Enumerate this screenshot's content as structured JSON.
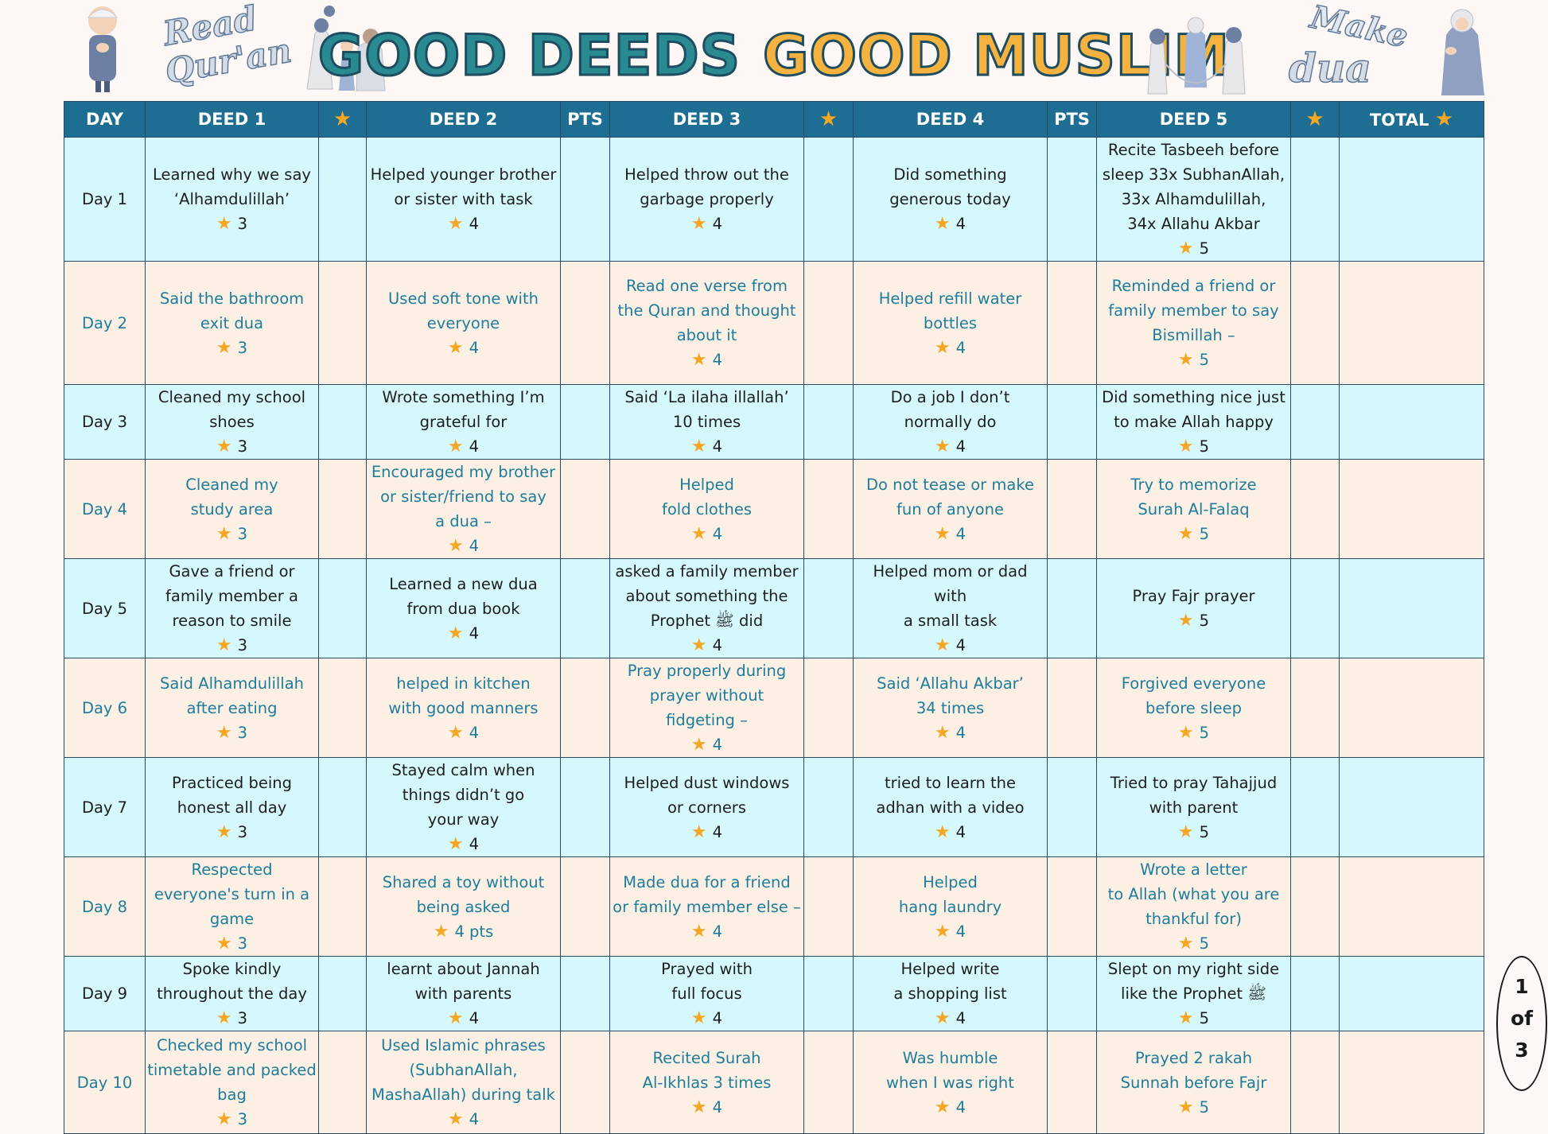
{
  "title": {
    "part1": "GOOD DEEDS",
    "part2": "GOOD MUSLIM"
  },
  "decor": {
    "read_quran": [
      "Read",
      "Qur'an"
    ],
    "make_dua": [
      "Make",
      "dua"
    ]
  },
  "columns": {
    "day": "DAY",
    "deed1": "DEED 1",
    "deed2": "DEED 2",
    "pts": "PTS",
    "deed3": "DEED 3",
    "deed4": "DEED 4",
    "deed5": "DEED 5",
    "total": "TOTAL",
    "star_icon": "★"
  },
  "rows": [
    {
      "day": "Day 1",
      "deeds": [
        {
          "text": "Learned why we say\n‘Alhamdulillah’",
          "pts": "3"
        },
        {
          "text": "Helped younger brother\nor sister with task",
          "pts": "4"
        },
        {
          "text": "Helped throw out the\ngarbage properly",
          "pts": "4"
        },
        {
          "text": "Did something\ngenerous today",
          "pts": "4"
        },
        {
          "text": "Recite Tasbeeh before\nsleep 33x SubhanAllah,\n33x Alhamdulillah,\n34x Allahu Akbar",
          "pts": "5"
        }
      ]
    },
    {
      "day": "Day 2",
      "deeds": [
        {
          "text": "Said the bathroom\nexit dua",
          "pts": "3"
        },
        {
          "text": "Used soft tone with\neveryone",
          "pts": "4"
        },
        {
          "text": "Read one verse from\nthe Quran and thought\nabout it",
          "pts": "4"
        },
        {
          "text": "Helped refill water\nbottles",
          "pts": "4"
        },
        {
          "text": "Reminded a friend or\nfamily member to say\nBismillah –",
          "pts": "5"
        }
      ]
    },
    {
      "day": "Day 3",
      "deeds": [
        {
          "text": "Cleaned my school\nshoes",
          "pts": "3"
        },
        {
          "text": "Wrote something I’m\ngrateful for",
          "pts": "4"
        },
        {
          "text": "Said ‘La ilaha illallah’\n10 times",
          "pts": "4"
        },
        {
          "text": "Do a job I don’t\nnormally do",
          "pts": "4"
        },
        {
          "text": "Did something nice just\nto make Allah happy",
          "pts": "5"
        }
      ]
    },
    {
      "day": "Day 4",
      "deeds": [
        {
          "text": "Cleaned my\nstudy area",
          "pts": "3"
        },
        {
          "text": "Encouraged my brother\nor sister/friend to say\na dua –",
          "pts": "4"
        },
        {
          "text": "Helped\nfold clothes",
          "pts": "4"
        },
        {
          "text": "Do not tease or make\nfun of anyone",
          "pts": "4"
        },
        {
          "text": "Try to memorize\nSurah Al-Falaq",
          "pts": "5"
        }
      ]
    },
    {
      "day": "Day 5",
      "deeds": [
        {
          "text": "Gave a friend or\nfamily member a\nreason to smile",
          "pts": "3"
        },
        {
          "text": "Learned a new dua\nfrom dua book",
          "pts": "4"
        },
        {
          "text": "asked a family member\nabout something the\nProphet ﷺ did",
          "pts": "4"
        },
        {
          "text": "Helped mom or dad with\na small task",
          "pts": "4"
        },
        {
          "text": "Pray Fajr prayer",
          "pts": "5"
        }
      ]
    },
    {
      "day": "Day 6",
      "deeds": [
        {
          "text": "Said Alhamdulillah\nafter eating",
          "pts": "3"
        },
        {
          "text": "helped in kitchen\nwith good manners",
          "pts": "4"
        },
        {
          "text": "Pray properly during\nprayer without\nfidgeting –",
          "pts": "4"
        },
        {
          "text": "Said ‘Allahu Akbar’\n34 times",
          "pts": "4"
        },
        {
          "text": "Forgived everyone\nbefore sleep",
          "pts": "5"
        }
      ]
    },
    {
      "day": "Day 7",
      "deeds": [
        {
          "text": "Practiced being\nhonest all day",
          "pts": "3"
        },
        {
          "text": "Stayed calm when\nthings didn’t go\nyour way",
          "pts": "4"
        },
        {
          "text": "Helped dust windows\nor corners",
          "pts": "4"
        },
        {
          "text": "tried to learn the\nadhan with a video",
          "pts": "4"
        },
        {
          "text": "Tried to pray Tahajjud\nwith parent",
          "pts": "5"
        }
      ]
    },
    {
      "day": "Day 8",
      "deeds": [
        {
          "text": "Respected\neveryone's turn in a\ngame",
          "pts": "3"
        },
        {
          "text": "Shared a toy without\nbeing asked",
          "pts": "4 pts"
        },
        {
          "text": "Made dua for a friend\nor family member else –",
          "pts": "4"
        },
        {
          "text": "Helped\nhang laundry",
          "pts": "4"
        },
        {
          "text": "Wrote a letter\nto Allah (what you are\nthankful for)",
          "pts": "5"
        }
      ]
    },
    {
      "day": "Day 9",
      "deeds": [
        {
          "text": "Spoke kindly\nthroughout the day",
          "pts": "3"
        },
        {
          "text": "learnt about Jannah\nwith parents",
          "pts": "4"
        },
        {
          "text": "Prayed with\nfull focus",
          "pts": "4"
        },
        {
          "text": "Helped write\na shopping list",
          "pts": "4"
        },
        {
          "text": "Slept on my right side\nlike the Prophet ﷺ",
          "pts": "5"
        }
      ]
    },
    {
      "day": "Day 10",
      "deeds": [
        {
          "text": "Checked my school\ntimetable and packed\nbag",
          "pts": "3"
        },
        {
          "text": "Used Islamic phrases\n(SubhanAllah,\nMashaAllah) during talk",
          "pts": "4"
        },
        {
          "text": "Recited Surah\nAl-Ikhlas 3 times",
          "pts": "4"
        },
        {
          "text": "Was humble\nwhen I was right",
          "pts": "4"
        },
        {
          "text": "Prayed 2 rakah\nSunnah before Fajr",
          "pts": "5"
        }
      ]
    }
  ],
  "page_badge": {
    "current": "1",
    "of": "of",
    "total": "3"
  },
  "colors": {
    "header_bg": "#1d6e92",
    "row_blue": "#d4f8fc",
    "row_peach": "#fcefe4",
    "blue_text": "#1e7d9c",
    "star": "#f5a623",
    "title_teal": "#2a8a92",
    "title_gold": "#f5b23e"
  }
}
